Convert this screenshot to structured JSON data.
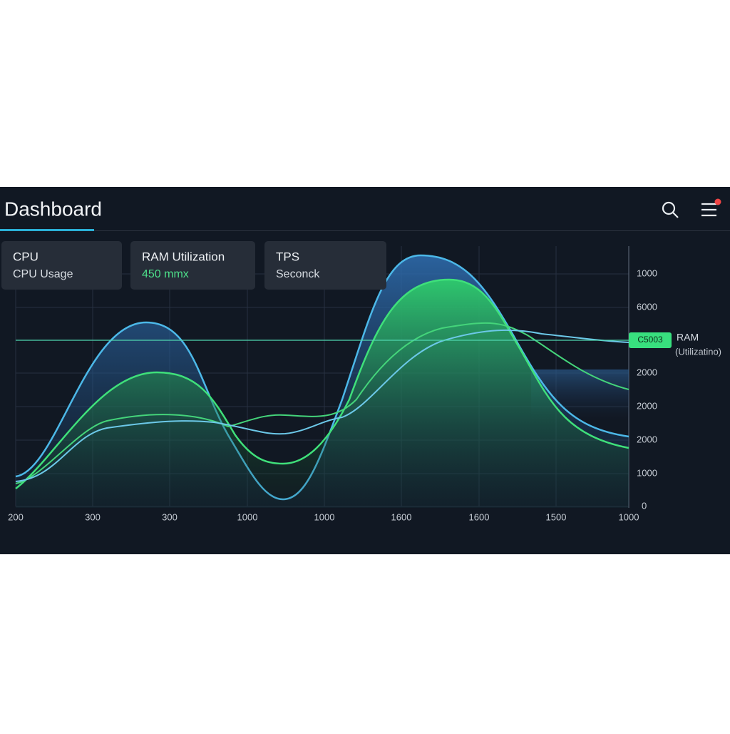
{
  "header": {
    "title": "Dashboard"
  },
  "cards": [
    {
      "title": "CPU",
      "subtitle": "CPU Usage"
    },
    {
      "title": "RAM Utilization",
      "subtitle": "450 mmx"
    },
    {
      "title": "TPS",
      "subtitle": "Seconck"
    }
  ],
  "chart": {
    "y_labels": [
      "1000",
      "6000",
      "2000",
      "2000",
      "2000",
      "1000",
      "0"
    ],
    "x_labels": [
      "200",
      "300",
      "300",
      "1000",
      "1000",
      "1600",
      "1600",
      "1500",
      "1000"
    ],
    "badge": "C5003",
    "legend_title": "RAM",
    "legend_subtitle": "(Utilizatino)"
  }
}
